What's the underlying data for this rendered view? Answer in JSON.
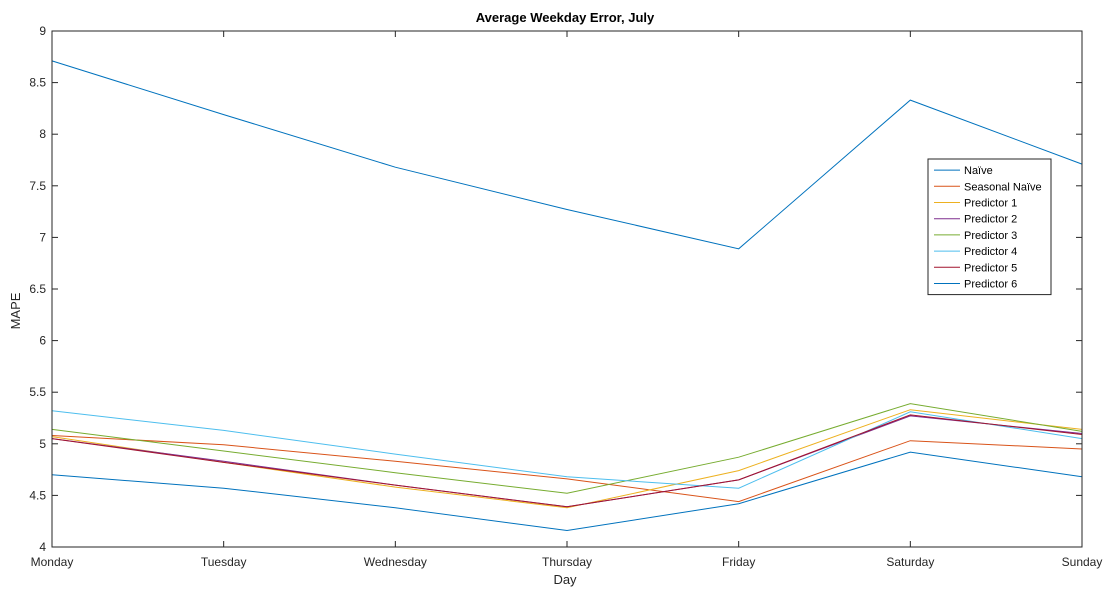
{
  "chart_data": {
    "type": "line",
    "title": "Average Weekday Error, July",
    "xlabel": "Day",
    "ylabel": "MAPE",
    "categories": [
      "Monday",
      "Tuesday",
      "Wednesday",
      "Thursday",
      "Friday",
      "Saturday",
      "Sunday"
    ],
    "ylim": [
      4,
      9
    ],
    "yticks": [
      4,
      4.5,
      5,
      5.5,
      6,
      6.5,
      7,
      7.5,
      8,
      8.5,
      9
    ],
    "ytick_labels": [
      "4",
      "4.5",
      "5",
      "5.5",
      "6",
      "6.5",
      "7",
      "7.5",
      "8",
      "8.5",
      "9"
    ],
    "grid": false,
    "legend_position": "right",
    "series": [
      {
        "name": "Naïve",
        "color": "#0072BD",
        "values": [
          8.71,
          8.19,
          7.68,
          7.27,
          6.89,
          8.33,
          7.71
        ]
      },
      {
        "name": "Seasonal Naïve",
        "color": "#D95319",
        "values": [
          5.08,
          4.99,
          4.83,
          4.66,
          4.44,
          5.03,
          4.95
        ]
      },
      {
        "name": "Predictor 1",
        "color": "#EDB120",
        "values": [
          5.07,
          4.82,
          4.58,
          4.38,
          4.74,
          5.33,
          5.14
        ]
      },
      {
        "name": "Predictor 2",
        "color": "#7E2F8E",
        "values": [
          5.05,
          4.83,
          4.6,
          4.39,
          4.65,
          5.27,
          5.1
        ]
      },
      {
        "name": "Predictor 3",
        "color": "#77AC30",
        "values": [
          5.14,
          4.93,
          4.72,
          4.52,
          4.87,
          5.39,
          5.12
        ]
      },
      {
        "name": "Predictor 4",
        "color": "#4DBEEE",
        "values": [
          5.32,
          5.13,
          4.9,
          4.68,
          4.57,
          5.31,
          5.05
        ]
      },
      {
        "name": "Predictor 5",
        "color": "#A2142F",
        "values": [
          5.05,
          4.82,
          4.6,
          4.39,
          4.65,
          5.28,
          5.09
        ]
      },
      {
        "name": "Predictor 6",
        "color": "#0072BD",
        "values": [
          4.7,
          4.57,
          4.38,
          4.16,
          4.42,
          4.92,
          4.68
        ]
      }
    ]
  }
}
